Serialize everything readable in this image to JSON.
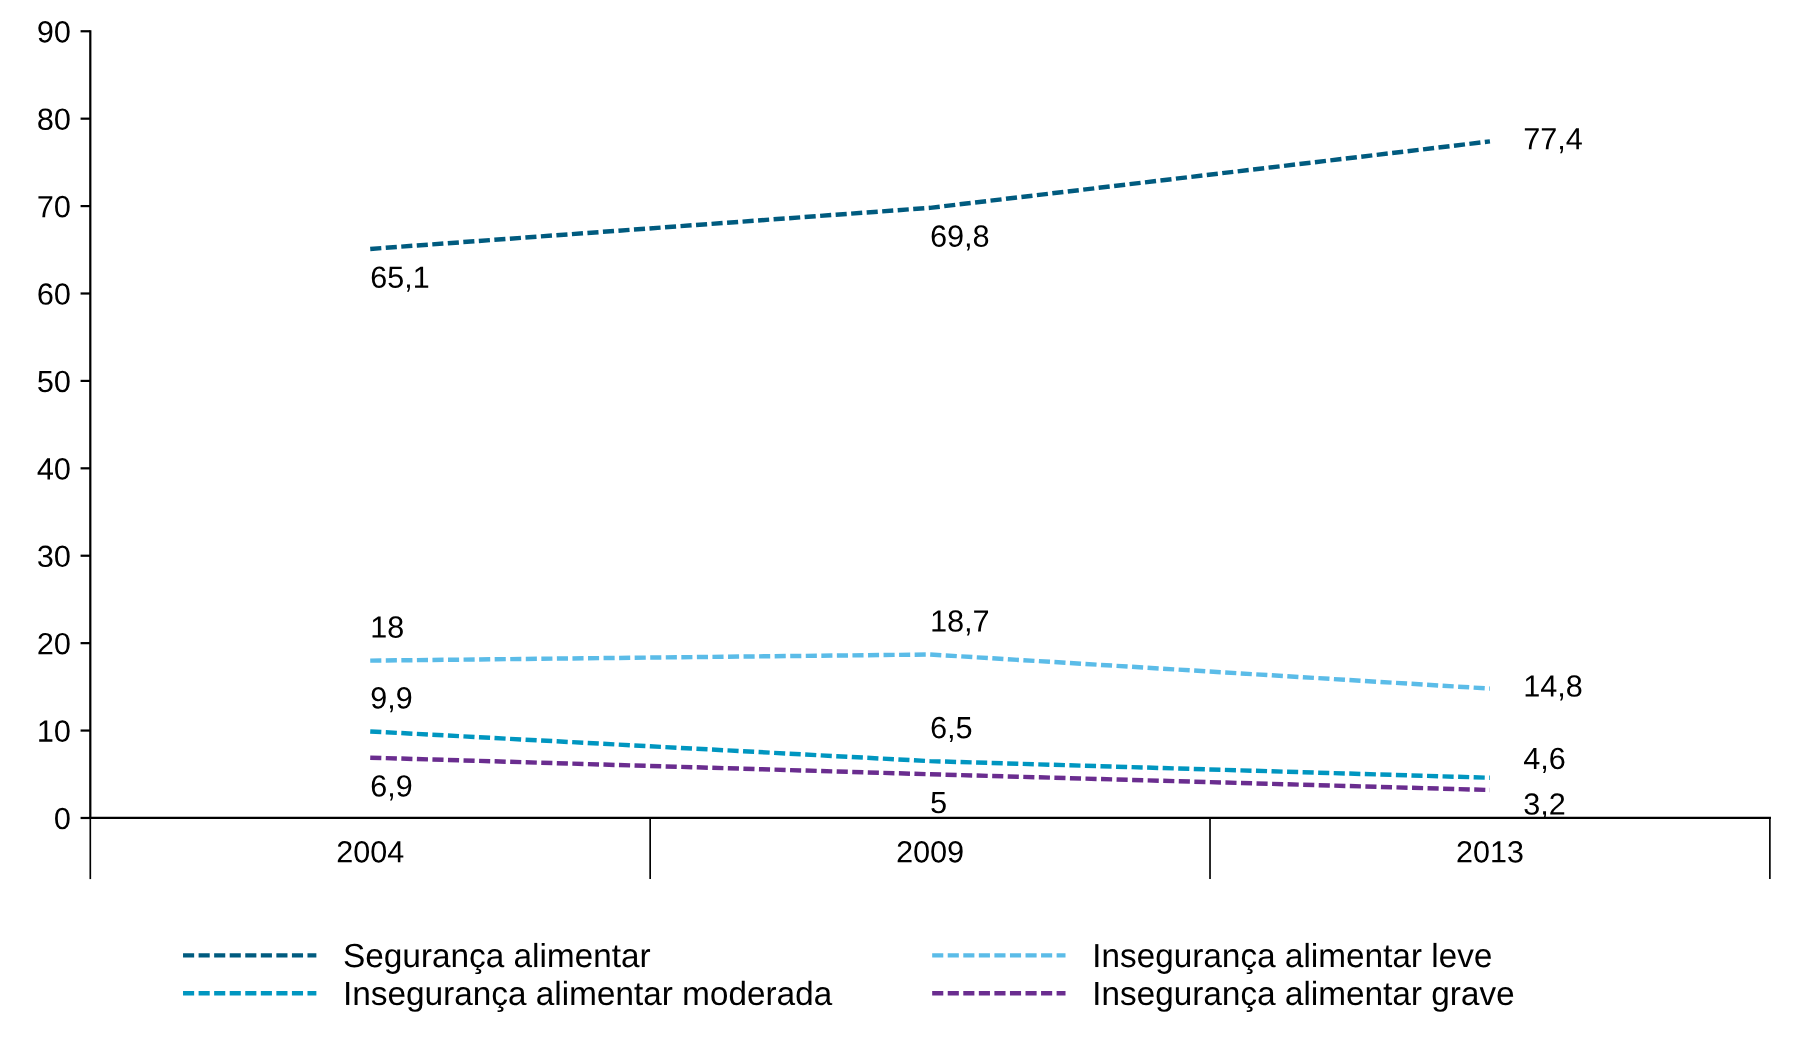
{
  "chart_data": {
    "type": "line",
    "categories": [
      "2004",
      "2009",
      "2013"
    ],
    "series": [
      {
        "name": "Segurança alimentar",
        "color": "#005b7f",
        "values": [
          65.1,
          69.8,
          77.4
        ],
        "value_labels": [
          "65,1",
          "69,8",
          "77,4"
        ]
      },
      {
        "name": "Insegurança alimentar leve",
        "color": "#5bbce8",
        "values": [
          18,
          18.7,
          14.8
        ],
        "value_labels": [
          "18",
          "18,7",
          "14,8"
        ]
      },
      {
        "name": "Insegurança alimentar moderada",
        "color": "#0096c0",
        "values": [
          9.9,
          6.5,
          4.6
        ],
        "value_labels": [
          "9,9",
          "6,5",
          "4,6"
        ]
      },
      {
        "name": "Insegurança alimentar grave",
        "color": "#6a2d8f",
        "values": [
          6.9,
          5,
          3.2
        ],
        "value_labels": [
          "6,9",
          "5",
          "3,2"
        ]
      }
    ],
    "ylim": [
      0,
      90
    ],
    "yticks": [
      0,
      10,
      20,
      30,
      40,
      50,
      60,
      70,
      80,
      90
    ],
    "line_style": "dashed",
    "marker": "none",
    "grid": false,
    "legend": "bottom"
  }
}
